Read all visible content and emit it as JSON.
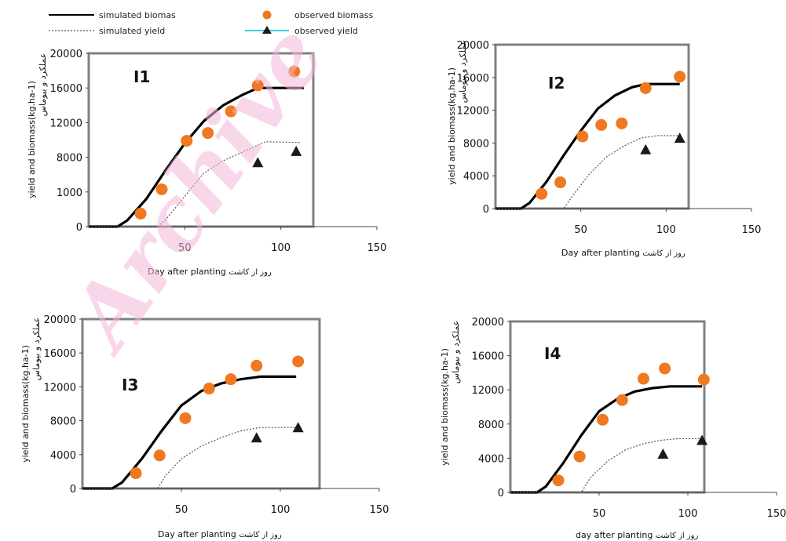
{
  "legend": {
    "simulated_biomass": "simulated biomas",
    "simulated_yield": "simulated yield",
    "observed_biomass": "observed biomass",
    "observed_yield": "observed yield"
  },
  "watermark": "Archive",
  "colors": {
    "observed_biomass": "#f07820",
    "observed_yield": "#1a1a1a",
    "legend_yield_line": "#3fd0e0",
    "axis_box": "#808080",
    "watermark": "#f3b8da"
  },
  "chart_data": [
    {
      "type": "line",
      "title": "I1",
      "xlabel": "Day after planting",
      "xlabel_persian": "روز از کاشت",
      "ylabel": "yield and biomass(kg.ha-1)",
      "ylabel_persian": "عملکرد و بیوماس",
      "xlim": [
        0,
        150
      ],
      "ylim": [
        0,
        20000
      ],
      "x_ticks": [
        "50",
        "100",
        "150"
      ],
      "y_ticks": [
        "0",
        "1000",
        "8000",
        "12000",
        "16000",
        "20000"
      ],
      "series": [
        {
          "name": "simulated biomas",
          "style": "solid",
          "points": [
            [
              0,
              0
            ],
            [
              15,
              0
            ],
            [
              20,
              700
            ],
            [
              30,
              3200
            ],
            [
              40,
              6500
            ],
            [
              50,
              9600
            ],
            [
              60,
              12200
            ],
            [
              70,
              14000
            ],
            [
              80,
              15200
            ],
            [
              88,
              16000
            ],
            [
              105,
              16000
            ],
            [
              112,
              16000
            ]
          ]
        },
        {
          "name": "simulated yield",
          "style": "dotted",
          "points": [
            [
              0,
              0
            ],
            [
              36,
              0
            ],
            [
              40,
              800
            ],
            [
              50,
              3500
            ],
            [
              60,
              6200
            ],
            [
              70,
              7600
            ],
            [
              80,
              8600
            ],
            [
              92,
              9800
            ],
            [
              110,
              9700
            ]
          ]
        },
        {
          "name": "observed biomass",
          "style": "circle",
          "points": [
            [
              27,
              1500
            ],
            [
              38,
              4300
            ],
            [
              51,
              9900
            ],
            [
              62,
              10800
            ],
            [
              74,
              13300
            ],
            [
              88,
              16300
            ],
            [
              107,
              17900
            ]
          ]
        },
        {
          "name": "observed yield",
          "style": "triangle",
          "points": [
            [
              88,
              7400
            ],
            [
              108,
              8700
            ]
          ]
        }
      ]
    },
    {
      "type": "line",
      "title": "I2",
      "xlabel": "Day after planting",
      "xlabel_persian": "روز از کاشت",
      "ylabel": "yield and biomass(kg.ha-1)",
      "ylabel_persian": "عملکرد و بیوماس",
      "xlim": [
        0,
        150
      ],
      "ylim": [
        0,
        20000
      ],
      "x_ticks": [
        "50",
        "100",
        "150"
      ],
      "y_ticks": [
        "0",
        "4000",
        "8000",
        "12000",
        "16000",
        "20000"
      ],
      "series": [
        {
          "name": "simulated biomas",
          "style": "solid",
          "points": [
            [
              0,
              0
            ],
            [
              15,
              0
            ],
            [
              20,
              700
            ],
            [
              30,
              3300
            ],
            [
              40,
              6500
            ],
            [
              50,
              9500
            ],
            [
              60,
              12200
            ],
            [
              70,
              13800
            ],
            [
              80,
              14800
            ],
            [
              88,
              15200
            ],
            [
              108,
              15200
            ]
          ]
        },
        {
          "name": "simulated yield",
          "style": "dotted",
          "points": [
            [
              0,
              0
            ],
            [
              40,
              0
            ],
            [
              45,
              1500
            ],
            [
              55,
              4200
            ],
            [
              65,
              6300
            ],
            [
              75,
              7600
            ],
            [
              85,
              8600
            ],
            [
              95,
              8900
            ],
            [
              108,
              8900
            ]
          ]
        },
        {
          "name": "observed biomass",
          "style": "circle",
          "points": [
            [
              27,
              1800
            ],
            [
              38,
              3200
            ],
            [
              51,
              8800
            ],
            [
              62,
              10200
            ],
            [
              74,
              10400
            ],
            [
              88,
              14700
            ],
            [
              108,
              16100
            ]
          ]
        },
        {
          "name": "observed yield",
          "style": "triangle",
          "points": [
            [
              88,
              7200
            ],
            [
              108,
              8600
            ]
          ]
        }
      ]
    },
    {
      "type": "line",
      "title": "I3",
      "xlabel": "Day after planting",
      "xlabel_persian": "روز از کاشت",
      "ylabel": "yield and biomass(kg.ha-1)",
      "ylabel_persian": "عملکرد و بیوماس",
      "xlim": [
        0,
        150
      ],
      "ylim": [
        0,
        20000
      ],
      "x_ticks": [
        "50",
        "100",
        "150"
      ],
      "y_ticks": [
        "0",
        "4000",
        "8000",
        "12000",
        "16000",
        "20000"
      ],
      "series": [
        {
          "name": "simulated biomas",
          "style": "solid",
          "points": [
            [
              0,
              0
            ],
            [
              15,
              0
            ],
            [
              20,
              700
            ],
            [
              30,
              3500
            ],
            [
              40,
              6800
            ],
            [
              50,
              9800
            ],
            [
              60,
              11500
            ],
            [
              70,
              12400
            ],
            [
              80,
              12900
            ],
            [
              90,
              13200
            ],
            [
              108,
              13200
            ]
          ]
        },
        {
          "name": "simulated yield",
          "style": "dotted",
          "points": [
            [
              0,
              0
            ],
            [
              38,
              0
            ],
            [
              42,
              1500
            ],
            [
              50,
              3500
            ],
            [
              60,
              5000
            ],
            [
              70,
              6000
            ],
            [
              80,
              6800
            ],
            [
              90,
              7200
            ],
            [
              108,
              7200
            ]
          ]
        },
        {
          "name": "observed biomass",
          "style": "circle",
          "points": [
            [
              27,
              1800
            ],
            [
              39,
              3900
            ],
            [
              52,
              8300
            ],
            [
              64,
              11800
            ],
            [
              75,
              12900
            ],
            [
              88,
              14500
            ],
            [
              109,
              15000
            ]
          ]
        },
        {
          "name": "observed yield",
          "style": "triangle",
          "points": [
            [
              88,
              6000
            ],
            [
              109,
              7200
            ]
          ]
        }
      ]
    },
    {
      "type": "line",
      "title": "I4",
      "xlabel": "day after planting",
      "xlabel_persian": "روز از کاشت",
      "ylabel": "yield and biomass(kg.ha-1)",
      "ylabel_persian": "عملکرد و بیوماس",
      "xlim": [
        0,
        150
      ],
      "ylim": [
        0,
        20000
      ],
      "x_ticks": [
        "50",
        "100",
        "150"
      ],
      "y_ticks": [
        "0",
        "4000",
        "8000",
        "12000",
        "16000",
        "20000"
      ],
      "series": [
        {
          "name": "simulated biomas",
          "style": "solid",
          "points": [
            [
              0,
              0
            ],
            [
              15,
              0
            ],
            [
              20,
              700
            ],
            [
              30,
              3500
            ],
            [
              40,
              6700
            ],
            [
              50,
              9500
            ],
            [
              60,
              10900
            ],
            [
              70,
              11800
            ],
            [
              80,
              12200
            ],
            [
              90,
              12400
            ],
            [
              108,
              12400
            ]
          ]
        },
        {
          "name": "simulated yield",
          "style": "dotted",
          "points": [
            [
              0,
              0
            ],
            [
              40,
              0
            ],
            [
              45,
              1700
            ],
            [
              55,
              3700
            ],
            [
              65,
              5000
            ],
            [
              75,
              5700
            ],
            [
              85,
              6100
            ],
            [
              95,
              6300
            ],
            [
              108,
              6300
            ]
          ]
        },
        {
          "name": "observed biomass",
          "style": "circle",
          "points": [
            [
              27,
              1400
            ],
            [
              39,
              4200
            ],
            [
              52,
              8500
            ],
            [
              63,
              10800
            ],
            [
              75,
              13300
            ],
            [
              87,
              14500
            ],
            [
              109,
              13200
            ]
          ]
        },
        {
          "name": "observed yield",
          "style": "triangle",
          "points": [
            [
              86,
              4500
            ],
            [
              108,
              6100
            ]
          ]
        }
      ]
    }
  ]
}
